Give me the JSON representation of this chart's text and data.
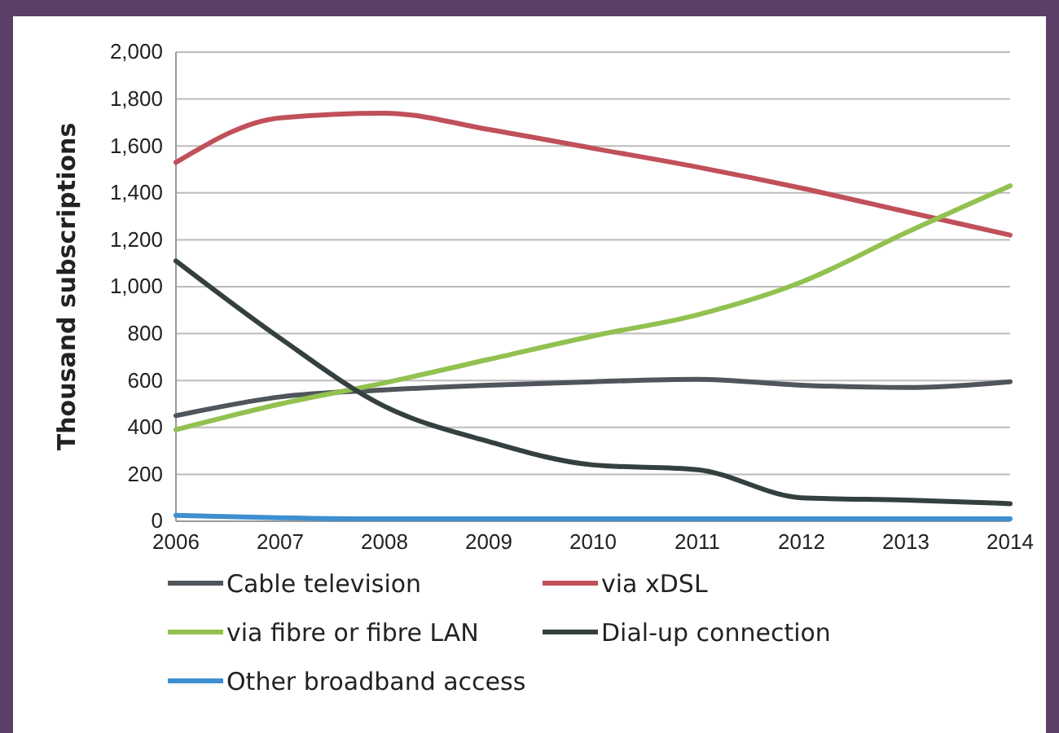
{
  "chart_data": {
    "type": "line",
    "ylabel": "Thousand subscriptions",
    "x": [
      2006,
      2007,
      2008,
      2009,
      2010,
      2011,
      2012,
      2013,
      2014
    ],
    "xlim": [
      2006,
      2014
    ],
    "xticks": [
      2006,
      2007,
      2008,
      2009,
      2010,
      2011,
      2012,
      2013,
      2014
    ],
    "ylim": [
      0,
      2000
    ],
    "yticks": [
      {
        "value": 0,
        "label": "0"
      },
      {
        "value": 200,
        "label": "200"
      },
      {
        "value": 400,
        "label": "400"
      },
      {
        "value": 600,
        "label": "600"
      },
      {
        "value": 800,
        "label": "800"
      },
      {
        "value": 1000,
        "label": "1,000"
      },
      {
        "value": 1200,
        "label": "1,200"
      },
      {
        "value": 1400,
        "label": "1,400"
      },
      {
        "value": 1600,
        "label": "1,600"
      },
      {
        "value": 1800,
        "label": "1,800"
      },
      {
        "value": 2000,
        "label": "2,000"
      }
    ],
    "grid": "y",
    "legend": "bottom",
    "marker": "none",
    "line_style": "solid",
    "series": [
      {
        "name": "Cable television",
        "color": "#50555c",
        "values": [
          450,
          530,
          560,
          580,
          595,
          605,
          580,
          570,
          595
        ]
      },
      {
        "name": "via xDSL",
        "color": "#c0505a",
        "values": [
          1530,
          1720,
          1740,
          1670,
          1590,
          1510,
          1420,
          1320,
          1220
        ]
      },
      {
        "name": "via fibre or fibre LAN",
        "color": "#92c150",
        "values": [
          390,
          500,
          590,
          690,
          790,
          880,
          1020,
          1230,
          1430
        ]
      },
      {
        "name": "Dial-up connection",
        "color": "#344040",
        "values": [
          1110,
          780,
          490,
          340,
          240,
          220,
          100,
          90,
          75
        ]
      },
      {
        "name": "Other broadband access",
        "color": "#3d8fd0",
        "values": [
          25,
          15,
          10,
          10,
          10,
          10,
          10,
          10,
          10
        ]
      }
    ]
  }
}
